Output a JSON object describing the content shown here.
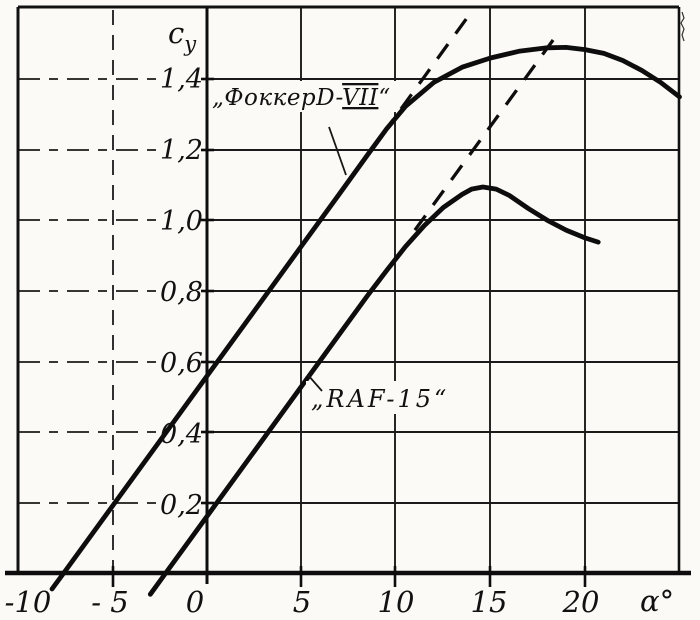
{
  "figure": {
    "background": "#fbfaf6",
    "ink": "#161616"
  },
  "chart_data": {
    "type": "line",
    "title": "",
    "xlabel": "α°",
    "ylabel": "су",
    "ylabel_main": "с",
    "ylabel_sub": "у",
    "xlim": [
      -10,
      25
    ],
    "ylim": [
      0,
      1.6
    ],
    "grid": true,
    "xticks": [
      -10,
      -5,
      0,
      5,
      10,
      15,
      20
    ],
    "xtick_labels": [
      "-10",
      "- 5",
      "0",
      "5",
      "10",
      "15",
      "20"
    ],
    "yticks": [
      0.2,
      0.4,
      0.6,
      0.8,
      1.0,
      1.2,
      1.4
    ],
    "ytick_labels": [
      "0,2",
      "0,4",
      "0,6",
      "0,8",
      "1,0",
      "1,2",
      "1,4"
    ],
    "legend_position": "inline-annotations",
    "annotations": [
      {
        "series": "Фоккер D-VII",
        "text_prefix": "„ФоккерD-",
        "text_roman": "VII",
        "text_suffix": "“"
      },
      {
        "series": "RAF-15",
        "text": "„RAF-15“"
      }
    ],
    "series": [
      {
        "name": "Фоккер D-VII",
        "style": "solid",
        "points": [
          [
            -8.2,
            -0.044
          ],
          [
            -7.6,
            0.0
          ],
          [
            -5.0,
            0.191
          ],
          [
            -2.5,
            0.375
          ],
          [
            0.0,
            0.559
          ],
          [
            2.5,
            0.743
          ],
          [
            5.0,
            0.927
          ],
          [
            7.0,
            1.074
          ],
          [
            8.5,
            1.185
          ],
          [
            9.5,
            1.258
          ],
          [
            10.5,
            1.322
          ],
          [
            12.0,
            1.39
          ],
          [
            13.5,
            1.433
          ],
          [
            15.0,
            1.459
          ],
          [
            16.5,
            1.478
          ],
          [
            18.0,
            1.488
          ],
          [
            19.0,
            1.489
          ],
          [
            20.0,
            1.483
          ],
          [
            21.0,
            1.472
          ],
          [
            22.0,
            1.452
          ],
          [
            23.0,
            1.424
          ],
          [
            24.0,
            1.39
          ],
          [
            25.0,
            1.349
          ]
        ]
      },
      {
        "name": "RAF-15",
        "style": "solid",
        "points": [
          [
            -3.0,
            -0.059
          ],
          [
            -2.2,
            0.0
          ],
          [
            0.0,
            0.162
          ],
          [
            2.5,
            0.346
          ],
          [
            5.0,
            0.53
          ],
          [
            7.0,
            0.677
          ],
          [
            8.5,
            0.787
          ],
          [
            9.5,
            0.857
          ],
          [
            10.5,
            0.925
          ],
          [
            11.5,
            0.985
          ],
          [
            12.5,
            1.036
          ],
          [
            13.5,
            1.073
          ],
          [
            14.0,
            1.088
          ],
          [
            14.6,
            1.094
          ],
          [
            15.3,
            1.088
          ],
          [
            16.0,
            1.07
          ],
          [
            17.0,
            1.033
          ],
          [
            18.0,
            1.0
          ],
          [
            19.0,
            0.972
          ],
          [
            20.0,
            0.95
          ],
          [
            20.7,
            0.938
          ]
        ]
      },
      {
        "name": "Фоккер D-VII linear extrapolation",
        "style": "dashed",
        "points": [
          [
            9.3,
            1.244
          ],
          [
            13.9,
            1.583
          ]
        ]
      },
      {
        "name": "RAF-15 linear extrapolation",
        "style": "dashed",
        "points": [
          [
            11.0,
            0.972
          ],
          [
            18.6,
            1.531
          ]
        ]
      }
    ]
  }
}
